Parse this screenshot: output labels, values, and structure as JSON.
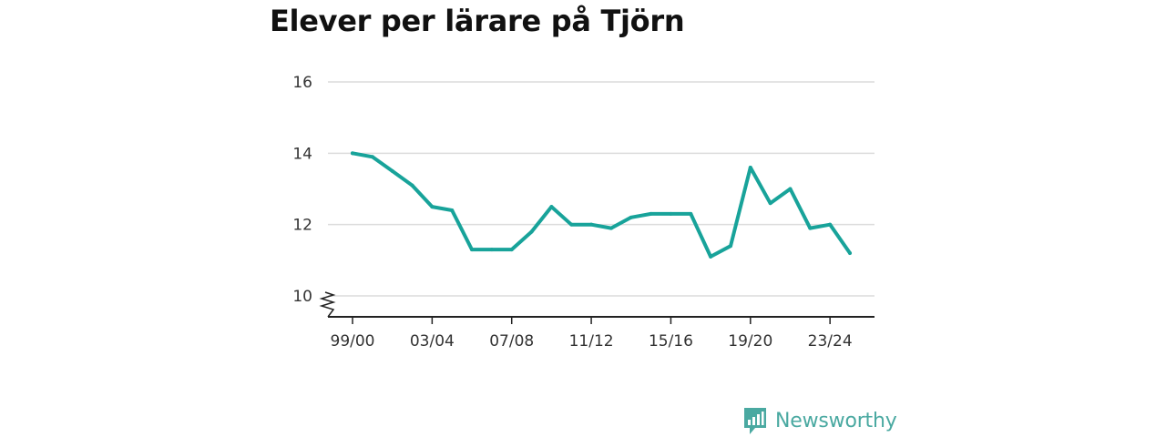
{
  "title": "Elever per lärare på Tjörn",
  "brand": {
    "name": "Newsworthy",
    "color": "#4aa9a1"
  },
  "chart_data": {
    "type": "line",
    "title": "Elever per lärare på Tjörn",
    "xlabel": "",
    "ylabel": "",
    "x": [
      "99/00",
      "00/01",
      "01/02",
      "02/03",
      "03/04",
      "04/05",
      "05/06",
      "06/07",
      "07/08",
      "08/09",
      "09/10",
      "10/11",
      "11/12",
      "12/13",
      "13/14",
      "14/15",
      "15/16",
      "16/17",
      "17/18",
      "18/19",
      "19/20",
      "20/21",
      "21/22",
      "22/23",
      "23/24",
      "24/25"
    ],
    "x_tick_labels": [
      "99/00",
      "03/04",
      "07/08",
      "11/12",
      "15/16",
      "19/20",
      "23/24"
    ],
    "series": [
      {
        "values": [
          14.0,
          13.9,
          13.5,
          13.1,
          12.5,
          12.4,
          11.3,
          11.3,
          11.3,
          11.8,
          12.5,
          12.0,
          12.0,
          11.9,
          12.2,
          12.3,
          12.3,
          12.3,
          11.1,
          11.4,
          13.6,
          12.6,
          13.0,
          11.9,
          12.0,
          11.2
        ],
        "color": "#18a39a"
      }
    ],
    "ylim": [
      10,
      16
    ],
    "y_ticks": [
      10,
      12,
      14,
      16
    ],
    "y_axis_break": true,
    "grid": true,
    "legend": "none"
  }
}
